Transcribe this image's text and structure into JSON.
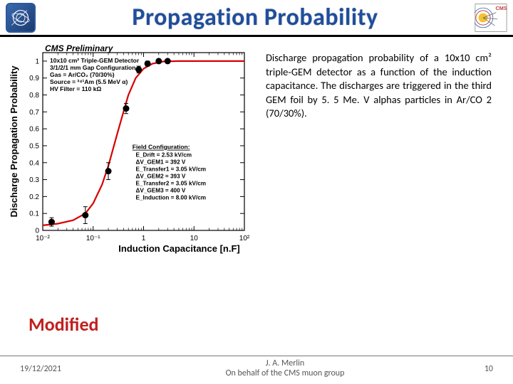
{
  "header": {
    "title": "Propagation Probability",
    "title_color": "#1f4e9c",
    "title_fontsize": 34
  },
  "logos": {
    "left": "cern-logo",
    "right": "cms-logo"
  },
  "description": {
    "text": "Discharge propagation probability of a 10x10 cm² triple-GEM detector as a function of the induction capacitance. The discharges are triggered in the third GEM foil by 5. 5 Me. V alphas particles in Ar/CO 2 (70/30%).",
    "fontsize": 14.5
  },
  "modified_label": "Modified",
  "footer": {
    "date": "19/12/2021",
    "author": "J. A. Merlin",
    "subtitle": "On behalf of the CMS muon group",
    "page": "10"
  },
  "chart": {
    "type": "scatter-with-fit",
    "preliminary_label": "CMS Preliminary",
    "ylabel": "Discharge Propagation Probability",
    "xlabel": "Induction Capacitance [n.F]",
    "xscale": "log",
    "yscale": "linear",
    "xlim": [
      0.01,
      100
    ],
    "ylim": [
      0,
      1.05
    ],
    "xticks": [
      0.01,
      0.1,
      1,
      10,
      100
    ],
    "xtick_labels": [
      "10⁻²",
      "10⁻¹",
      "1",
      "10",
      "10²"
    ],
    "yticks": [
      0,
      0.1,
      0.2,
      0.3,
      0.4,
      0.5,
      0.6,
      0.7,
      0.8,
      0.9,
      1
    ],
    "ytick_labels": [
      "0",
      "0.1",
      "0.2",
      "0.3",
      "0.4",
      "0.5",
      "0.6",
      "0.7",
      "0.8",
      "0.9",
      "1"
    ],
    "marker_color": "#000000",
    "marker_size": 4.5,
    "curve_color": "#d80000",
    "curve_width": 2.2,
    "frame_color": "#000000",
    "label_fontsize": 13,
    "tick_fontsize": 10,
    "annotation_box1": [
      "10x10 cm² Triple-GEM Detector",
      "3/1/2/1 mm Gap Configuration",
      "Gas = Ar/CO₂ (70/30%)",
      "Source = ²⁴¹Am (5.5 MeV α)",
      "HV Filter = 110 kΩ"
    ],
    "annotation_box2_title": "Field Configuration:",
    "annotation_box2": [
      "E_Drift = 2.53 kV/cm",
      "ΔV_GEM1 = 392 V",
      "E_Transfer1 = 3.05 kV/cm",
      "ΔV_GEM2 = 393 V",
      "E_Transfer2 = 3.05 kV/cm",
      "ΔV_GEM3 = 400 V",
      "E_Induction = 8.00 kV/cm"
    ],
    "data_points": [
      {
        "x": 0.015,
        "y": 0.05,
        "ey": 0.025
      },
      {
        "x": 0.07,
        "y": 0.09,
        "ey": 0.05
      },
      {
        "x": 0.2,
        "y": 0.35,
        "ey": 0.05
      },
      {
        "x": 0.45,
        "y": 0.72,
        "ey": 0.03
      },
      {
        "x": 0.8,
        "y": 0.95,
        "ey": 0.02
      },
      {
        "x": 1.2,
        "y": 0.985,
        "ey": 0.015
      },
      {
        "x": 2.0,
        "y": 1.0,
        "ey": 0.0
      },
      {
        "x": 3.0,
        "y": 1.0,
        "ey": 0.0
      }
    ],
    "fit_curve": [
      {
        "x": 0.01,
        "y": 0.03
      },
      {
        "x": 0.02,
        "y": 0.04
      },
      {
        "x": 0.04,
        "y": 0.06
      },
      {
        "x": 0.07,
        "y": 0.1
      },
      {
        "x": 0.1,
        "y": 0.16
      },
      {
        "x": 0.15,
        "y": 0.27
      },
      {
        "x": 0.2,
        "y": 0.38
      },
      {
        "x": 0.3,
        "y": 0.57
      },
      {
        "x": 0.4,
        "y": 0.7
      },
      {
        "x": 0.5,
        "y": 0.8
      },
      {
        "x": 0.7,
        "y": 0.9
      },
      {
        "x": 1.0,
        "y": 0.955
      },
      {
        "x": 1.5,
        "y": 0.985
      },
      {
        "x": 2.5,
        "y": 0.998
      },
      {
        "x": 5,
        "y": 1.0
      },
      {
        "x": 20,
        "y": 1.0
      },
      {
        "x": 100,
        "y": 1.0
      }
    ]
  }
}
